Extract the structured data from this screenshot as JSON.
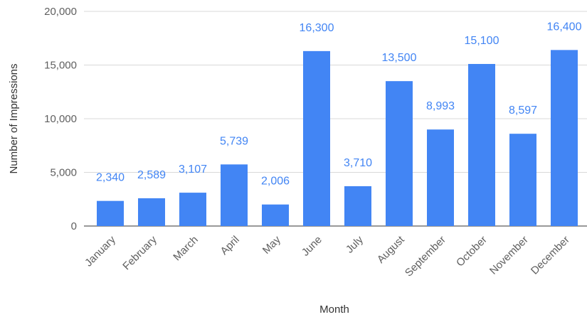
{
  "chart_data": {
    "type": "bar",
    "categories": [
      "January",
      "February",
      "March",
      "April",
      "May",
      "June",
      "July",
      "August",
      "September",
      "October",
      "November",
      "December"
    ],
    "values": [
      2340,
      2589,
      3107,
      5739,
      2006,
      16300,
      3710,
      13500,
      8993,
      15100,
      8597,
      16400
    ],
    "value_labels": [
      "2,340",
      "2,589",
      "3,107",
      "5,739",
      "2,006",
      "16,300",
      "3,710",
      "13,500",
      "8,993",
      "15,100",
      "8,597",
      "16,400"
    ],
    "xlabel": "Month",
    "ylabel": "Number of Impressions",
    "ylim": [
      0,
      20000
    ],
    "yticks": [
      0,
      5000,
      10000,
      15000,
      20000
    ],
    "ytick_labels": [
      "0",
      "5,000",
      "10,000",
      "15,000",
      "20,000"
    ],
    "grid": true,
    "bar_color": "#4285f4",
    "label_color": "#4285f4"
  }
}
